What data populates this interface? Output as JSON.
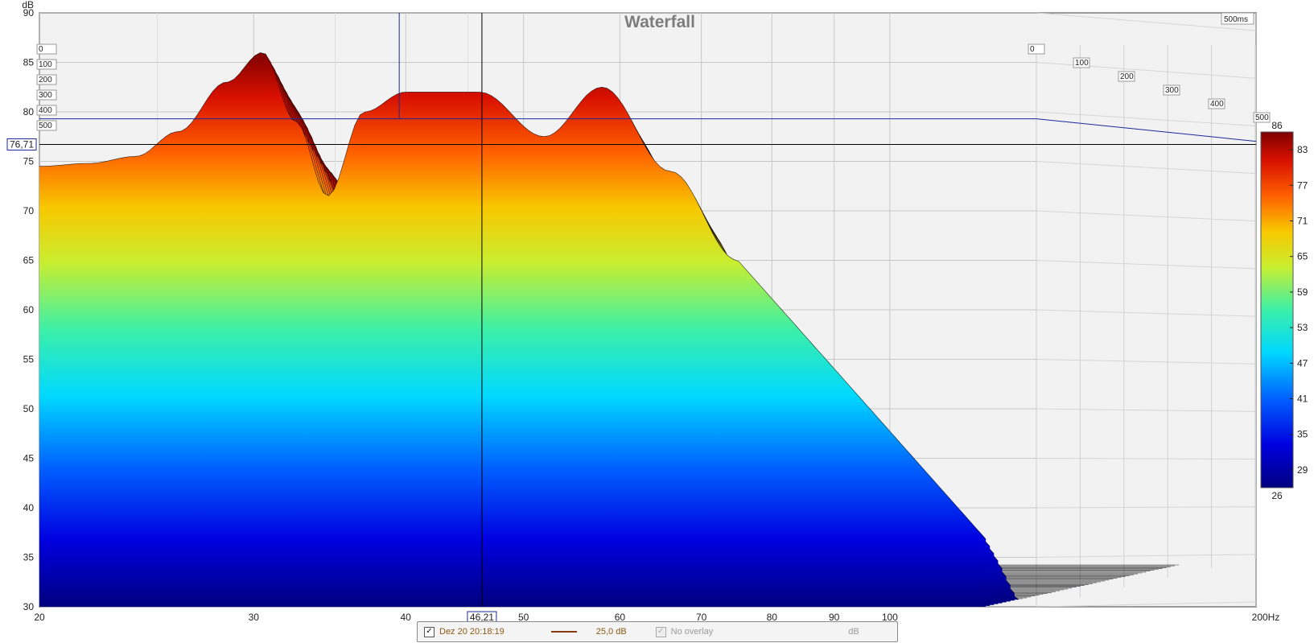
{
  "chart_data": {
    "type": "waterfall",
    "title": "Waterfall",
    "ylabel": "dB",
    "xunit": "Hz",
    "xscale": "log",
    "xlim": [
      20,
      200
    ],
    "ylim": [
      30,
      90
    ],
    "x_ticks": [
      "20",
      "30",
      "40",
      "50",
      "60",
      "70",
      "80",
      "90",
      "100",
      "200Hz"
    ],
    "y_ticks": [
      "30",
      "35",
      "40",
      "45",
      "50",
      "55",
      "60",
      "65",
      "70",
      "75",
      "80",
      "85",
      "90"
    ],
    "time_unit": "ms",
    "time_labels": [
      "0",
      "100",
      "200",
      "300",
      "400",
      "500"
    ],
    "time_end_label": "500ms",
    "colorbar": {
      "min": 26,
      "max": 86,
      "labels": [
        "83",
        "77",
        "71",
        "65",
        "59",
        "53",
        "47",
        "41",
        "35",
        "29"
      ]
    },
    "cursor": {
      "x": 46.21,
      "x_label": "46,21",
      "y": 76.71,
      "y_label": "76,71"
    },
    "peaks_front_slice": [
      {
        "f": 20,
        "db": 74.5
      },
      {
        "f": 22,
        "db": 74.8
      },
      {
        "f": 24,
        "db": 75.5
      },
      {
        "f": 26,
        "db": 78
      },
      {
        "f": 28.5,
        "db": 83
      },
      {
        "f": 30.5,
        "db": 86
      },
      {
        "f": 32.5,
        "db": 79
      },
      {
        "f": 34.5,
        "db": 71.5
      },
      {
        "f": 37,
        "db": 80
      },
      {
        "f": 40,
        "db": 82
      },
      {
        "f": 46,
        "db": 82
      },
      {
        "f": 52,
        "db": 77.5
      },
      {
        "f": 58,
        "db": 82.5
      },
      {
        "f": 66,
        "db": 74
      },
      {
        "f": 75,
        "db": 65
      }
    ]
  },
  "legend": {
    "date": "Dez 20 20:18:19",
    "value": "25,0 dB",
    "overlay": "No overlay",
    "unit": "dB",
    "checked_mark": "✓"
  },
  "colors": {
    "cursor_line": "#000000",
    "ref_line": "#1a2a9a",
    "grid": "#c8c8c8"
  }
}
